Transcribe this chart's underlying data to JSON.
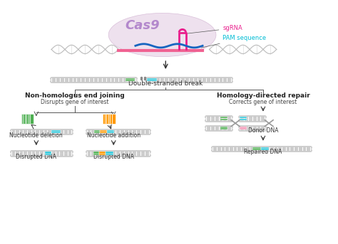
{
  "bg_color": "#ffffff",
  "cas9_color": "#e8d5e8",
  "cas9_text": "Cas9",
  "cas9_text_color": "#b388cc",
  "sgrna_color": "#e91e8c",
  "sgrna_label": "sgRNA",
  "sgrna_label_color": "#e91e8c",
  "pam_label": "PAM sequence",
  "pam_label_color": "#00bcd4",
  "dna_helix_color": "#cccccc",
  "green_block_color": "#4caf50",
  "teal_block_color": "#26c6da",
  "orange_block_color": "#ff9800",
  "pink_block_color": "#f48fb1",
  "arrow_color": "#333333",
  "line_color": "#aaaaaa",
  "title_nhej": "Non-homologus end joining",
  "subtitle_nhej": "Disrupts gene of interest",
  "title_hdr": "Homology-directed repair",
  "subtitle_hdr": "Corrects gene of interest",
  "label_dsb": "Double-stranded break",
  "label_del": "Nucleotide deletion",
  "label_add": "Nucleotide addition",
  "label_donor": "Donor DNA",
  "label_disrupted1": "Disrupted DNA",
  "label_disrupted2": "Disrupted DNA",
  "label_repaired": "Repaired DNA"
}
